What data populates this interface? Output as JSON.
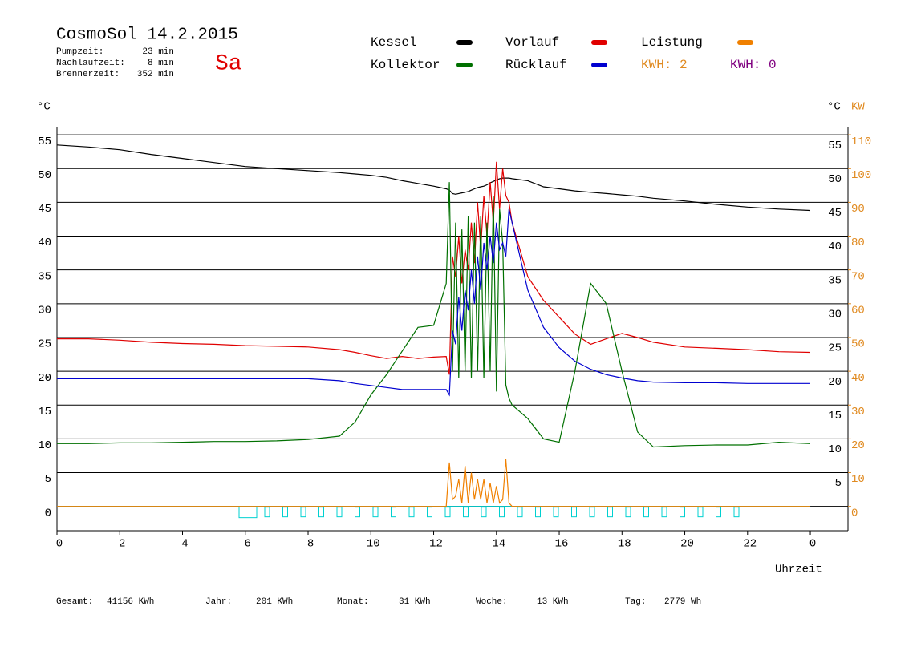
{
  "chart_data": {
    "type": "line",
    "title": "CosmoSol 14.2.2015",
    "weekday": "Sa",
    "stats": [
      {
        "label": "Pumpzeit:",
        "value": "23 min"
      },
      {
        "label": "Nachlaufzeit:",
        "value": "8 min"
      },
      {
        "label": "Brennerzeit:",
        "value": "352 min"
      }
    ],
    "kwh_labels": [
      {
        "text": "KWH: 2",
        "color": "#e08a20"
      },
      {
        "text": "KWH: 0",
        "color": "#800080"
      }
    ],
    "y_unit": "°C",
    "y2_unit": "KW",
    "x_label": "Uhrzeit",
    "footer": [
      {
        "label": "Gesamt:",
        "value": "41156 KWh"
      },
      {
        "label": "Jahr:",
        "value": "201 KWh"
      },
      {
        "label": "Monat:",
        "value": "31 KWh"
      },
      {
        "label": "Woche:",
        "value": "13 KWh"
      },
      {
        "label": "Tag:",
        "value": "2779 Wh"
      }
    ],
    "xlim": [
      0,
      25.2
    ],
    "xticks": [
      0,
      2,
      4,
      6,
      8,
      10,
      12,
      14,
      16,
      18,
      20,
      22,
      {
        "value": 24,
        "label": "0"
      }
    ],
    "ylim": [
      -3.6,
      56.2
    ],
    "yticks": [
      0,
      5,
      10,
      15,
      20,
      25,
      30,
      35,
      40,
      45,
      50,
      55
    ],
    "y2lim": [
      -7.2,
      112.4
    ],
    "y2ticks": [
      0,
      10,
      20,
      30,
      40,
      50,
      60,
      70,
      80,
      90,
      100,
      110
    ],
    "grid": true,
    "x": [
      0,
      1,
      2,
      3,
      4,
      5,
      6,
      7,
      8,
      9,
      9.5,
      10,
      10.5,
      11,
      11.5,
      12,
      12.4,
      12.5,
      12.6,
      12.7,
      12.8,
      12.9,
      13,
      13.1,
      13.2,
      13.3,
      13.4,
      13.5,
      13.6,
      13.7,
      13.8,
      13.9,
      14,
      14.1,
      14.2,
      14.3,
      14.4,
      14.5,
      15,
      15.5,
      16,
      16.5,
      17,
      17.5,
      18,
      18.5,
      19,
      20,
      21,
      22,
      23,
      24
    ],
    "series": [
      {
        "name": "Kessel",
        "color": "#000000",
        "values": [
          53.5,
          53.2,
          52.8,
          52.1,
          51.5,
          50.9,
          50.3,
          50.0,
          49.7,
          49.4,
          49.2,
          49.0,
          48.7,
          48.2,
          47.8,
          47.4,
          47.0,
          46.8,
          46.3,
          46.2,
          46.3,
          46.4,
          46.5,
          46.6,
          46.8,
          47.0,
          47.2,
          47.3,
          47.4,
          47.6,
          47.9,
          48.1,
          48.3,
          48.5,
          48.6,
          48.6,
          48.6,
          48.5,
          48.2,
          47.3,
          47.0,
          46.7,
          46.5,
          46.3,
          46.1,
          45.9,
          45.6,
          45.2,
          44.7,
          44.3,
          44.0,
          43.8
        ]
      },
      {
        "name": "Vorlauf",
        "color": "#e00000",
        "values": [
          24.8,
          24.8,
          24.6,
          24.3,
          24.1,
          24.0,
          23.8,
          23.7,
          23.6,
          23.2,
          22.8,
          22.3,
          21.9,
          22.2,
          21.9,
          22.1,
          22.2,
          19.5,
          37,
          34,
          40,
          33,
          38,
          35,
          42,
          36,
          45,
          38,
          46,
          40,
          48,
          42,
          51,
          44,
          50,
          46,
          45,
          42,
          34,
          30.5,
          28,
          25.5,
          24,
          24.8,
          25.6,
          25,
          24.3,
          23.6,
          23.4,
          23.2,
          22.9,
          22.8
        ]
      },
      {
        "name": "Leistung",
        "color": "#f08000",
        "axis": "y2",
        "values": [
          0,
          0,
          0,
          0,
          0,
          0,
          0,
          0,
          0,
          0,
          0,
          0,
          0,
          0,
          0,
          0,
          0,
          13,
          2,
          3,
          8,
          1,
          12,
          1,
          10,
          2,
          8,
          2,
          8,
          1,
          7,
          1,
          6,
          1,
          2,
          14,
          1,
          0,
          0,
          0,
          0,
          0,
          0,
          0,
          0,
          0,
          0,
          0,
          0,
          0,
          0,
          0
        ]
      },
      {
        "name": "Kollektor",
        "color": "#007000",
        "values": [
          9.3,
          9.3,
          9.4,
          9.4,
          9.5,
          9.6,
          9.6,
          9.7,
          9.9,
          10.4,
          12.5,
          16.5,
          19.5,
          23,
          26.5,
          26.8,
          33,
          48,
          20,
          42,
          19,
          41,
          20,
          43,
          19,
          42,
          20,
          43,
          19,
          42,
          20,
          46,
          17,
          44,
          39,
          18,
          16,
          15,
          13,
          10,
          9.5,
          20,
          33,
          30,
          20,
          11,
          8.8,
          9,
          9.1,
          9.1,
          9.5,
          9.3
        ]
      },
      {
        "name": "Rücklauf",
        "color": "#0000d0",
        "values": [
          18.9,
          18.9,
          18.9,
          18.9,
          18.9,
          18.9,
          18.9,
          18.9,
          18.9,
          18.6,
          18.2,
          17.9,
          17.6,
          17.3,
          17.3,
          17.3,
          17.3,
          16.5,
          26,
          24,
          31,
          26,
          32,
          29,
          35,
          30,
          37,
          32,
          39,
          35,
          40,
          36,
          42,
          38,
          39,
          37,
          44,
          42,
          32,
          26.5,
          23.5,
          21.5,
          20.3,
          19.5,
          19,
          18.6,
          18.4,
          18.3,
          18.3,
          18.2,
          18.2,
          18.2
        ]
      }
    ]
  }
}
